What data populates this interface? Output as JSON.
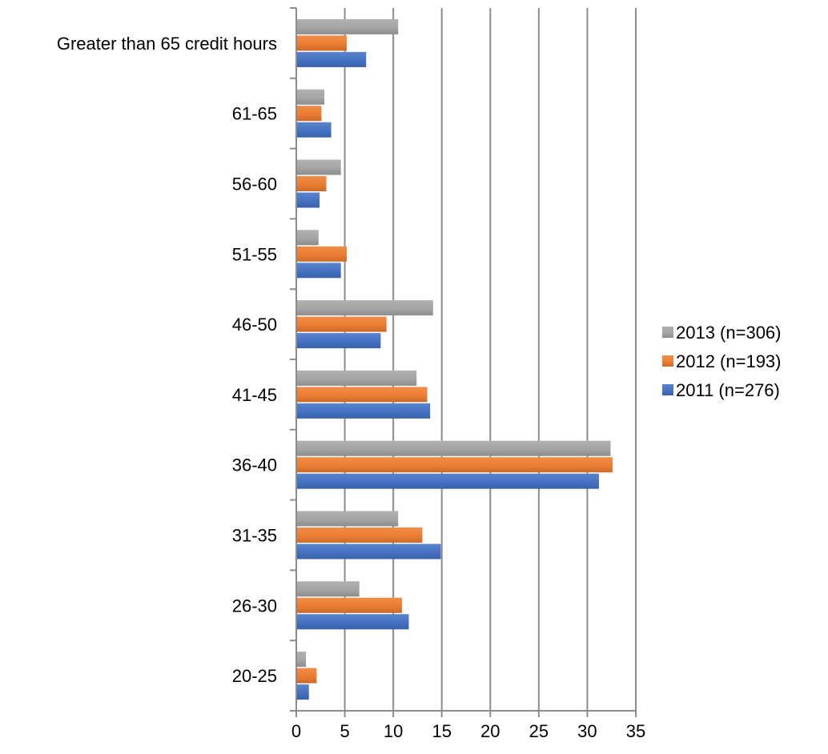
{
  "chart_data": {
    "type": "bar",
    "orientation": "horizontal",
    "title": "",
    "xlabel": "",
    "ylabel": "",
    "xlim": [
      0,
      35
    ],
    "x_ticks": [
      0,
      5,
      10,
      15,
      20,
      25,
      30,
      35
    ],
    "x_tick_labels": [
      "0",
      "5",
      "10",
      "15",
      "20",
      "25",
      "30",
      "35"
    ],
    "grid": "vertical",
    "legend_position": "right",
    "categories": [
      "20-25",
      "26-30",
      "31-35",
      "36-40",
      "41-45",
      "46-50",
      "51-55",
      "56-60",
      "61-65",
      "Greater than 65 credit hours"
    ],
    "series": [
      {
        "name": "2011 (n=276)",
        "color": "#4472C4",
        "values": [
          1.3,
          11.6,
          14.9,
          31.2,
          13.8,
          8.7,
          4.6,
          2.4,
          3.6,
          7.2
        ]
      },
      {
        "name": "2012 (n=193)",
        "color": "#ED7D31",
        "values": [
          2.1,
          10.9,
          13.0,
          32.6,
          13.5,
          9.3,
          5.2,
          3.1,
          2.6,
          5.2
        ]
      },
      {
        "name": "2013 (n=306)",
        "color": "#A5A5A5",
        "values": [
          1.0,
          6.5,
          10.5,
          32.4,
          12.4,
          14.1,
          2.3,
          4.6,
          2.9,
          10.5
        ]
      }
    ],
    "legend_order": [
      "2013 (n=306)",
      "2012 (n=193)",
      "2011 (n=276)"
    ]
  }
}
